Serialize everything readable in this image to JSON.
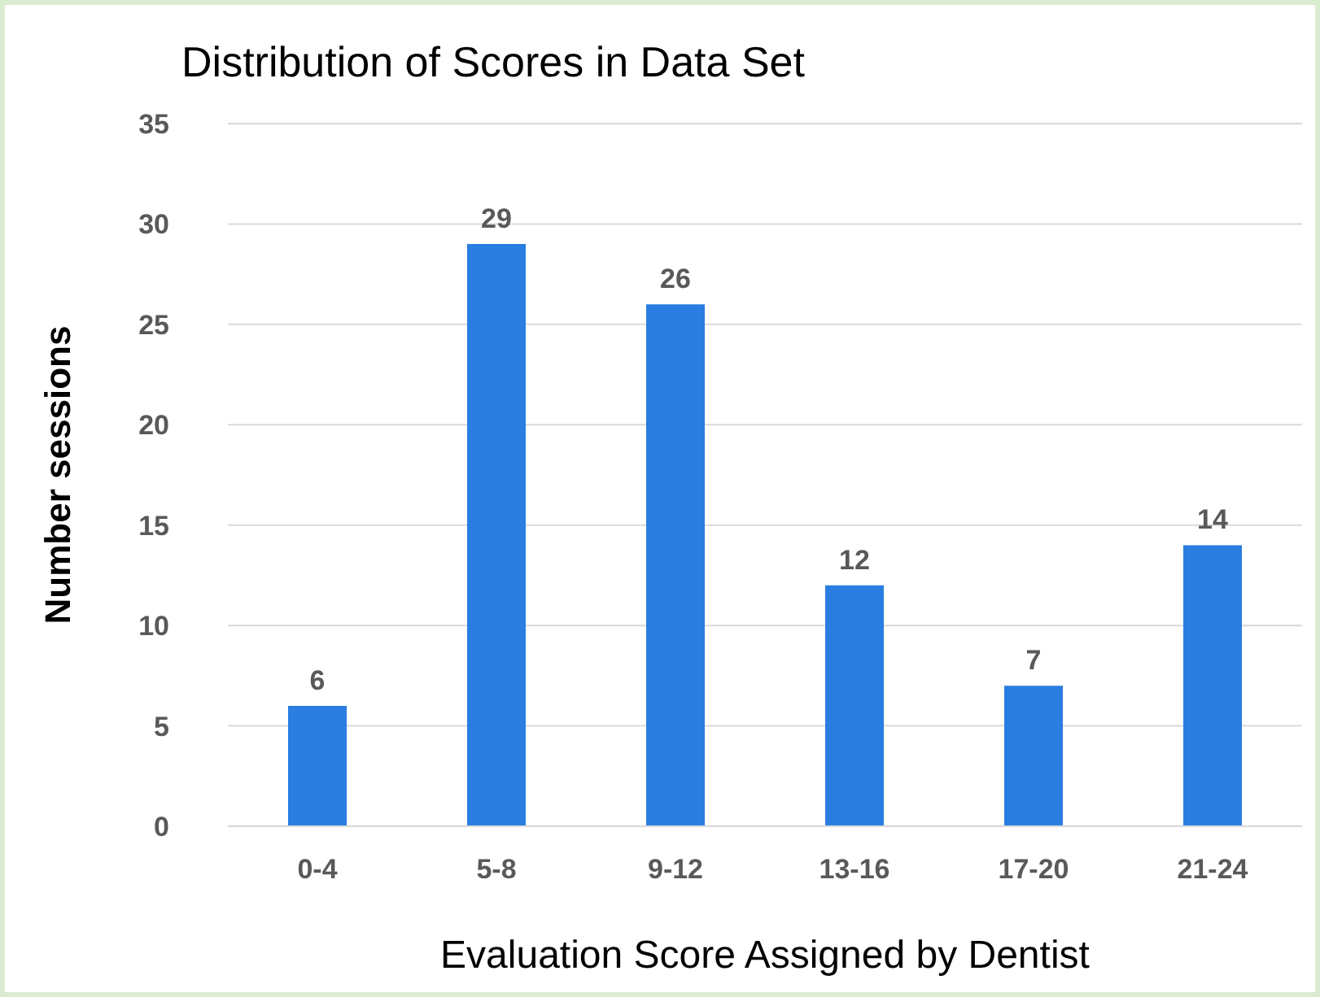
{
  "chart_data": {
    "type": "bar",
    "title": "Distribution of Scores in Data Set",
    "xlabel": "Evaluation Score Assigned by Dentist",
    "ylabel": "Number sessions",
    "categories": [
      "0-4",
      "5-8",
      "9-12",
      "13-16",
      "17-20",
      "21-24"
    ],
    "values": [
      6,
      29,
      26,
      12,
      7,
      14
    ],
    "color": "#2a7de1",
    "ylim": [
      0,
      35
    ],
    "yticks": [
      0,
      5,
      10,
      15,
      20,
      25,
      30,
      35
    ],
    "grid": "y",
    "data_labels": true
  }
}
